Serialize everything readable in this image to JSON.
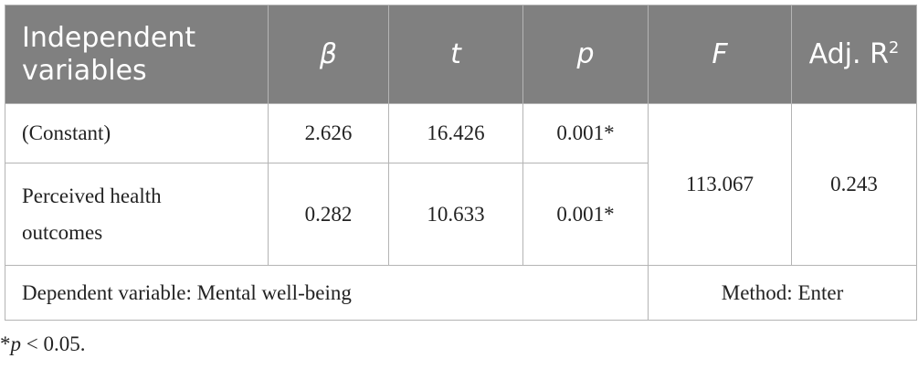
{
  "table": {
    "header": [
      "Independent variables",
      "β",
      "t",
      "p",
      "F",
      {
        "text": "Adj. R",
        "superscript": "2"
      }
    ],
    "rows": [
      [
        "(Constant)",
        "2.626",
        "16.426",
        "0.001*"
      ],
      [
        "Perceived health outcomes",
        "0.282",
        "10.633",
        "0.001*"
      ]
    ],
    "F": "113.067",
    "adj_r2": "0.243",
    "footer": [
      "Dependent variable: Mental well-being",
      "Method: Enter"
    ]
  },
  "footnote": {
    "prefix": "*",
    "italic": "p",
    "rest": " < 0.05."
  }
}
